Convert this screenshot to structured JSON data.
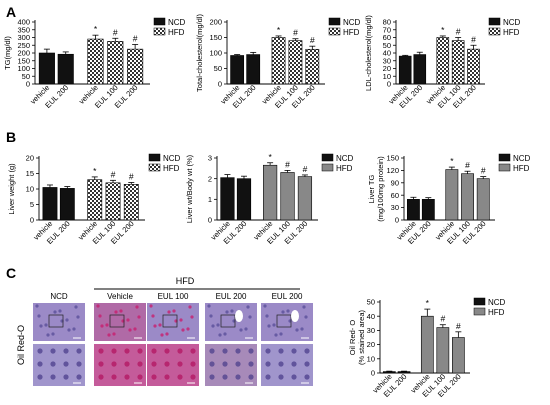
{
  "panel_letters": [
    "A",
    "B",
    "C"
  ],
  "colors": {
    "ncd": "#111111",
    "hfd_pattern": "checker",
    "hfd_gray": "#888888",
    "he_purple": "#8d78c0",
    "oil_red": "#c81e6e"
  },
  "histology": {
    "group_header": "HFD",
    "columns": [
      "NCD",
      "Vehicle",
      "EUL 100",
      "EUL 200",
      "EUL 200"
    ],
    "row_label": "Oil Red-O"
  },
  "chart_data": [
    {
      "type": "bar",
      "panel": "A",
      "fill": "pattern",
      "title": "",
      "ylabel": "TG(mg/dl)",
      "ylim": [
        0,
        400
      ],
      "yticks": [
        0,
        50,
        100,
        150,
        200,
        250,
        300,
        350,
        400
      ],
      "categories": [
        "vehicle",
        "EUL 200",
        "vehicle",
        "EUL 100",
        "EUL 200"
      ],
      "legend": [
        "NCD",
        "HFD"
      ],
      "legend_position": "top-right",
      "series": [
        {
          "name": "NCD",
          "values": [
            200,
            192,
            null,
            null,
            null
          ],
          "errors": [
            25,
            15,
            null,
            null,
            null
          ]
        },
        {
          "name": "HFD",
          "values": [
            null,
            null,
            290,
            275,
            225
          ],
          "errors": [
            null,
            null,
            25,
            20,
            30
          ]
        }
      ],
      "annotations": [
        "*",
        "#",
        "#"
      ]
    },
    {
      "type": "bar",
      "panel": "A",
      "fill": "pattern",
      "title": "",
      "ylabel": "Total-cholesterol(mg/dl)",
      "ylim": [
        0,
        200
      ],
      "yticks": [
        0,
        50,
        100,
        150,
        200
      ],
      "categories": [
        "vehicle",
        "EUL 200",
        "vehicle",
        "EUL 100",
        "EUL 200"
      ],
      "legend": [
        "NCD",
        "HFD"
      ],
      "legend_position": "top-right",
      "series": [
        {
          "name": "NCD",
          "values": [
            92,
            95,
            null,
            null,
            null
          ],
          "errors": [
            3,
            7,
            null,
            null,
            null
          ]
        },
        {
          "name": "HFD",
          "values": [
            null,
            null,
            150,
            140,
            112
          ],
          "errors": [
            null,
            null,
            5,
            6,
            10
          ]
        }
      ],
      "annotations": [
        "*",
        "#",
        "#"
      ]
    },
    {
      "type": "bar",
      "panel": "A",
      "fill": "pattern",
      "title": "",
      "ylabel": "LDL-cholesterol(mg/dl)",
      "ylim": [
        0,
        80
      ],
      "yticks": [
        0,
        10,
        20,
        30,
        40,
        50,
        60,
        70,
        80
      ],
      "categories": [
        "vehicle",
        "EUL 200",
        "vehicle",
        "EUL 100",
        "EUL 200"
      ],
      "legend": [
        "NCD",
        "HFD"
      ],
      "legend_position": "top-right",
      "series": [
        {
          "name": "NCD",
          "values": [
            36,
            38,
            null,
            null,
            null
          ],
          "errors": [
            1,
            3,
            null,
            null,
            null
          ]
        },
        {
          "name": "HFD",
          "values": [
            null,
            null,
            60,
            56,
            45
          ],
          "errors": [
            null,
            null,
            2,
            4,
            5
          ]
        }
      ],
      "annotations": [
        "*",
        "#",
        "#"
      ]
    },
    {
      "type": "bar",
      "panel": "B",
      "fill": "pattern",
      "title": "",
      "ylabel": "Liver weight (g)",
      "ylim": [
        0,
        20
      ],
      "yticks": [
        0,
        5,
        10,
        15,
        20
      ],
      "categories": [
        "vehicle",
        "EUL 200",
        "vehicle",
        "EUL 100",
        "EUL 200"
      ],
      "legend": [
        "NCD",
        "HFD"
      ],
      "legend_position": "top-right",
      "series": [
        {
          "name": "NCD",
          "values": [
            10.5,
            10.2,
            null,
            null,
            null
          ],
          "errors": [
            0.8,
            0.6,
            null,
            null,
            null
          ]
        },
        {
          "name": "HFD",
          "values": [
            null,
            null,
            13,
            12,
            11.5
          ],
          "errors": [
            null,
            null,
            0.9,
            0.8,
            0.6
          ]
        }
      ],
      "annotations": [
        "*",
        "#",
        "#"
      ]
    },
    {
      "type": "bar",
      "panel": "B",
      "fill": "gray",
      "title": "",
      "ylabel": "Liver wt/Body wt (%)",
      "ylim": [
        0,
        3
      ],
      "yticks": [
        0,
        1,
        2,
        3
      ],
      "categories": [
        "vehicle",
        "EUL 200",
        "vehicle",
        "EUL 100",
        "EUL 200"
      ],
      "legend": [
        "NCD",
        "HFD"
      ],
      "legend_position": "top-right",
      "series": [
        {
          "name": "NCD",
          "values": [
            2.05,
            2.0,
            null,
            null,
            null
          ],
          "errors": [
            0.15,
            0.12,
            null,
            null,
            null
          ]
        },
        {
          "name": "HFD",
          "values": [
            null,
            null,
            2.65,
            2.3,
            2.1
          ],
          "errors": [
            null,
            null,
            0.12,
            0.1,
            0.08
          ]
        }
      ],
      "annotations": [
        "*",
        "#",
        "#"
      ]
    },
    {
      "type": "bar",
      "panel": "B",
      "fill": "gray",
      "title": "",
      "ylabel": "Liver TG (mg/100mg protein)",
      "ylim": [
        0,
        150
      ],
      "yticks": [
        0,
        30,
        60,
        90,
        120,
        150
      ],
      "categories": [
        "vehicle",
        "EUL 200",
        "vehicle",
        "EUL 100",
        "EUL 200"
      ],
      "legend": [
        "NCD",
        "HFD"
      ],
      "legend_position": "top-right",
      "series": [
        {
          "name": "NCD",
          "values": [
            50,
            50,
            null,
            null,
            null
          ],
          "errors": [
            5,
            4,
            null,
            null,
            null
          ]
        },
        {
          "name": "HFD",
          "values": [
            null,
            null,
            122,
            112,
            100
          ],
          "errors": [
            null,
            null,
            6,
            6,
            5
          ]
        }
      ],
      "annotations": [
        "*",
        "#",
        "#"
      ]
    },
    {
      "type": "bar",
      "panel": "C",
      "fill": "gray",
      "title": "",
      "ylabel": "Oil Red- O (% stained area)",
      "ylim": [
        0,
        50
      ],
      "yticks": [
        0,
        10,
        20,
        30,
        40,
        50
      ],
      "categories": [
        "vehicle",
        "EUL 200",
        "vehicle",
        "EUL 100",
        "EUL 200"
      ],
      "legend": [
        "NCD",
        "HFD"
      ],
      "legend_position": "top-right",
      "series": [
        {
          "name": "NCD",
          "values": [
            1,
            1,
            null,
            null,
            null
          ],
          "errors": [
            0.3,
            0.3,
            null,
            null,
            null
          ]
        },
        {
          "name": "HFD",
          "values": [
            null,
            null,
            40,
            32,
            25
          ],
          "errors": [
            null,
            null,
            5,
            2,
            4
          ]
        }
      ],
      "annotations": [
        "*",
        "#",
        "#"
      ]
    }
  ]
}
